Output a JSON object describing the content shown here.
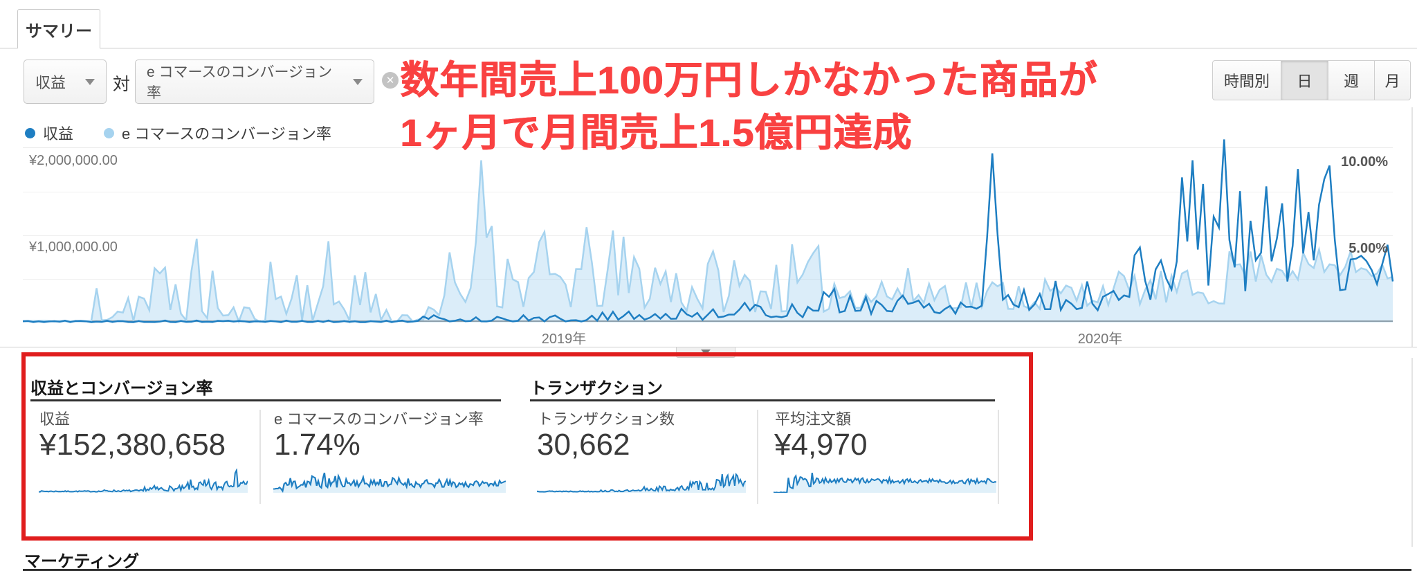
{
  "tab": {
    "label": "サマリー"
  },
  "toolbar": {
    "metric_dropdown": {
      "label": "収益"
    },
    "vs_label": "対",
    "compare_dropdown": {
      "label": "e コマースのコンバージョン率"
    },
    "granularity": {
      "options": [
        {
          "label": "時間別",
          "selected": false
        },
        {
          "label": "日",
          "selected": true
        },
        {
          "label": "週",
          "selected": false
        },
        {
          "label": "月",
          "selected": false
        }
      ]
    }
  },
  "annotation": {
    "line1": "数年間売上100万円しかなかった商品が",
    "line2": "1ヶ月で月間売上1.5億円達成",
    "color": "#f94141"
  },
  "legend": {
    "items": [
      {
        "label": "収益",
        "color": "#1e7ec2"
      },
      {
        "label": "e コマースのコンバージョン率",
        "color": "#a6d3ef"
      }
    ]
  },
  "chart": {
    "y_left": [
      "¥2,000,000.00",
      "¥1,000,000.00"
    ],
    "y_right": [
      "10.00%",
      "5.00%"
    ],
    "x_ticks": [
      "2019年",
      "2020年"
    ]
  },
  "scorecards": {
    "sections": [
      {
        "title": "収益とコンバージョン率",
        "cards": [
          {
            "label": "収益",
            "value": "¥152,380,658"
          },
          {
            "label": "e コマースのコンバージョン率",
            "value": "1.74%"
          }
        ]
      },
      {
        "title": "トランザクション",
        "cards": [
          {
            "label": "トランザクション数",
            "value": "30,662"
          },
          {
            "label": "平均注文額",
            "value": "¥4,970"
          }
        ]
      }
    ]
  },
  "next_section": {
    "title": "マーケティング"
  },
  "colors": {
    "series_dark": "#1e7ec2",
    "series_light": "#a6d3ef",
    "series_light_fill": "rgba(166,211,239,0.40)",
    "spark_fill": "rgba(166,211,239,0.35)",
    "red_box": "#e01d1d",
    "annotation_red": "#f94141"
  },
  "chart_data": {
    "type": "line",
    "title": "",
    "x_axis": "daily, 2018 – 2020",
    "x_tick_labels": [
      "2019年",
      "2020年"
    ],
    "left_axis": {
      "label": "収益",
      "max": 2000000,
      "gridlines": [
        2000000,
        1000000
      ]
    },
    "right_axis": {
      "label": "e コマースのコンバージョン率",
      "max_pct": 10,
      "gridlines_pct": [
        10,
        5
      ]
    },
    "series": [
      {
        "key": "conversion_rate",
        "name": "e コマースのコンバージョン率",
        "unit": "% of 10%-scale (fraction)",
        "seed": 11,
        "n": 260,
        "segments": [
          [
            0.0,
            0.05,
            0.004,
            0.012,
            1
          ],
          [
            0.05,
            0.1,
            0.005,
            0.45,
            2.2
          ],
          [
            0.1,
            0.145,
            0.01,
            0.5,
            1.8
          ],
          [
            0.145,
            0.175,
            0.004,
            0.12,
            2
          ],
          [
            0.175,
            0.26,
            0.01,
            0.48,
            1.9
          ],
          [
            0.26,
            0.305,
            0.004,
            0.1,
            2
          ],
          [
            0.305,
            0.33,
            0.05,
            0.45,
            1.5
          ],
          [
            0.33,
            0.345,
            0.3,
            0.92,
            1
          ],
          [
            0.345,
            0.475,
            0.08,
            0.55,
            1.7
          ],
          [
            0.475,
            0.6,
            0.06,
            0.45,
            1.7
          ],
          [
            0.6,
            0.68,
            0.08,
            0.32,
            1.4
          ],
          [
            0.68,
            0.78,
            0.07,
            0.28,
            1.4
          ],
          [
            0.78,
            0.88,
            0.1,
            0.3,
            1.3
          ],
          [
            0.88,
            0.97,
            0.22,
            0.42,
            1
          ],
          [
            0.97,
            1.0,
            0.25,
            0.38,
            1
          ]
        ],
        "spikes": [
          [
            0.336,
            0.93
          ]
        ]
      },
      {
        "key": "revenue",
        "name": "収益",
        "unit": "fraction of ¥2,000,000",
        "seed": 5,
        "n": 260,
        "segments": [
          [
            0.0,
            0.29,
            0.002,
            0.012,
            1.6
          ],
          [
            0.29,
            0.42,
            0.006,
            0.045,
            1.8
          ],
          [
            0.42,
            0.5,
            0.015,
            0.08,
            1.6
          ],
          [
            0.5,
            0.58,
            0.03,
            0.12,
            1.6
          ],
          [
            0.58,
            0.7,
            0.05,
            0.2,
            1.7
          ],
          [
            0.7,
            0.715,
            0.2,
            0.9,
            1
          ],
          [
            0.715,
            0.8,
            0.07,
            0.24,
            1.6
          ],
          [
            0.8,
            0.83,
            0.12,
            0.45,
            1.5
          ],
          [
            0.83,
            0.98,
            0.18,
            0.85,
            1.9
          ],
          [
            0.98,
            1.0,
            0.22,
            0.45,
            1.2
          ]
        ],
        "spikes": [
          [
            0.708,
            0.97
          ],
          [
            0.853,
            0.93
          ],
          [
            0.878,
            1.05
          ],
          [
            0.906,
            0.78
          ],
          [
            0.93,
            0.88
          ],
          [
            0.955,
            0.9
          ]
        ]
      }
    ],
    "sparklines": {
      "revenue": {
        "seed": 7,
        "n": 150,
        "segments": [
          [
            0,
            0.3,
            0.04,
            0.08,
            1
          ],
          [
            0.3,
            0.5,
            0.05,
            0.12,
            1.6
          ],
          [
            0.5,
            0.7,
            0.08,
            0.3,
            1.8
          ],
          [
            0.7,
            0.88,
            0.12,
            0.55,
            1.9
          ],
          [
            0.88,
            0.97,
            0.25,
            0.95,
            1.6
          ],
          [
            0.97,
            1.0,
            0.25,
            0.55,
            1
          ]
        ],
        "spikes": []
      },
      "conversion": {
        "seed": 11,
        "n": 150,
        "segments": [
          [
            0,
            0.04,
            0.06,
            0.25,
            1
          ],
          [
            0.04,
            0.1,
            0.15,
            0.75,
            1.6
          ],
          [
            0.1,
            0.28,
            0.2,
            0.85,
            1.7
          ],
          [
            0.28,
            0.6,
            0.25,
            0.65,
            1.4
          ],
          [
            0.6,
            0.85,
            0.22,
            0.55,
            1.4
          ],
          [
            0.85,
            1.0,
            0.28,
            0.5,
            1.2
          ]
        ],
        "spikes": []
      },
      "transactions": {
        "seed": 13,
        "n": 150,
        "segments": [
          [
            0,
            0.3,
            0.04,
            0.08,
            1
          ],
          [
            0.3,
            0.5,
            0.05,
            0.12,
            1.6
          ],
          [
            0.5,
            0.7,
            0.08,
            0.3,
            1.8
          ],
          [
            0.7,
            0.88,
            0.12,
            0.55,
            1.9
          ],
          [
            0.88,
            0.97,
            0.25,
            0.95,
            1.6
          ],
          [
            0.97,
            1.0,
            0.25,
            0.55,
            1
          ]
        ],
        "spikes": []
      },
      "aov": {
        "seed": 17,
        "n": 150,
        "segments": [
          [
            0,
            0.06,
            0.005,
            0.03,
            1
          ],
          [
            0.06,
            0.09,
            0.1,
            0.8,
            1.3
          ],
          [
            0.09,
            0.2,
            0.25,
            0.95,
            1.5
          ],
          [
            0.2,
            0.55,
            0.4,
            0.62,
            1.1
          ],
          [
            0.55,
            1.0,
            0.38,
            0.58,
            1.1
          ]
        ],
        "spikes": []
      }
    }
  }
}
